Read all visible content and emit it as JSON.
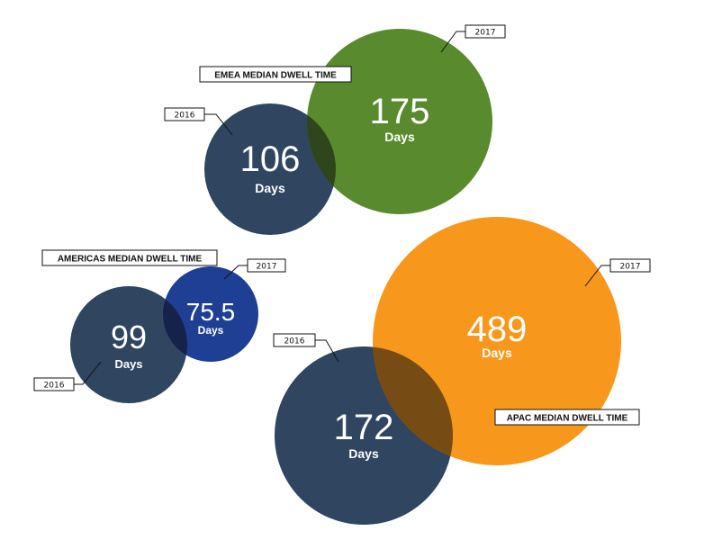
{
  "chart_data": {
    "type": "bubble",
    "unit_label": "Days",
    "groups": [
      {
        "title": "EMEA MEDIAN DWELL TIME",
        "points": [
          {
            "year": "2016",
            "value": 106,
            "label": "106",
            "color": "#2f4560"
          },
          {
            "year": "2017",
            "value": 175,
            "label": "175",
            "color": "#5a8a2e"
          }
        ]
      },
      {
        "title": "AMERICAS MEDIAN DWELL TIME",
        "points": [
          {
            "year": "2016",
            "value": 99,
            "label": "99",
            "color": "#2f4560"
          },
          {
            "year": "2017",
            "value": 75.5,
            "label": "75.5",
            "color": "#1f3f95"
          }
        ]
      },
      {
        "title": "APAC MEDIAN DWELL TIME",
        "points": [
          {
            "year": "2016",
            "value": 172,
            "label": "172",
            "color": "#2f4560"
          },
          {
            "year": "2017",
            "value": 489,
            "label": "489",
            "color": "#f7981d"
          }
        ]
      }
    ]
  }
}
